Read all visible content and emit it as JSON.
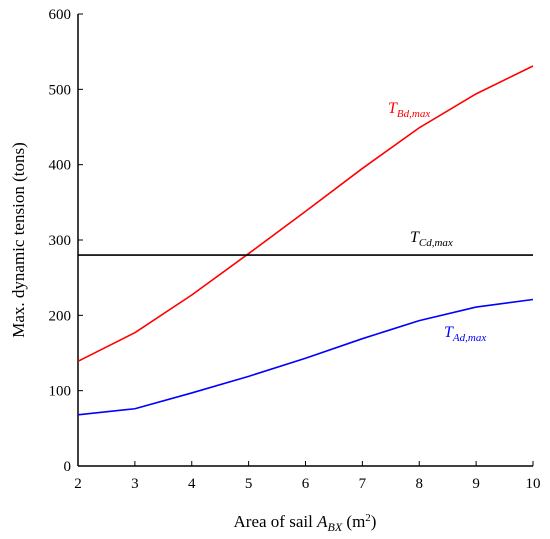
{
  "chart_data": {
    "type": "line",
    "title": "",
    "xlabel": {
      "text": "Area of sail ",
      "var": "A",
      "sub": "BX",
      "unit_pre": " (m",
      "unit_sup": "2",
      "unit_post": ")"
    },
    "ylabel": "Max. dynamic tension (tons)",
    "xlim": [
      2,
      10
    ],
    "ylim": [
      0,
      600
    ],
    "xticks": [
      2,
      3,
      4,
      5,
      6,
      7,
      8,
      9,
      10
    ],
    "yticks": [
      0,
      100,
      200,
      300,
      400,
      500,
      600
    ],
    "grid": false,
    "legend": "none",
    "x": [
      2,
      3,
      4,
      5,
      6,
      7,
      8,
      9,
      10
    ],
    "series": [
      {
        "key": "bd",
        "label_main": "T",
        "label_sub": "Bd,max",
        "color": "#ff0000",
        "values": [
          139,
          177,
          227,
          282,
          338,
          395,
          449,
          494,
          531
        ]
      },
      {
        "key": "cd",
        "label_main": "T",
        "label_sub": "Cd,max",
        "color": "#000000",
        "values": [
          280,
          280,
          280,
          280,
          280,
          280,
          280,
          280,
          280
        ]
      },
      {
        "key": "ad",
        "label_main": "T",
        "label_sub": "Ad,max",
        "color": "#0000ff",
        "values": [
          68,
          76,
          97,
          119,
          143,
          169,
          193,
          211,
          221
        ]
      }
    ]
  }
}
